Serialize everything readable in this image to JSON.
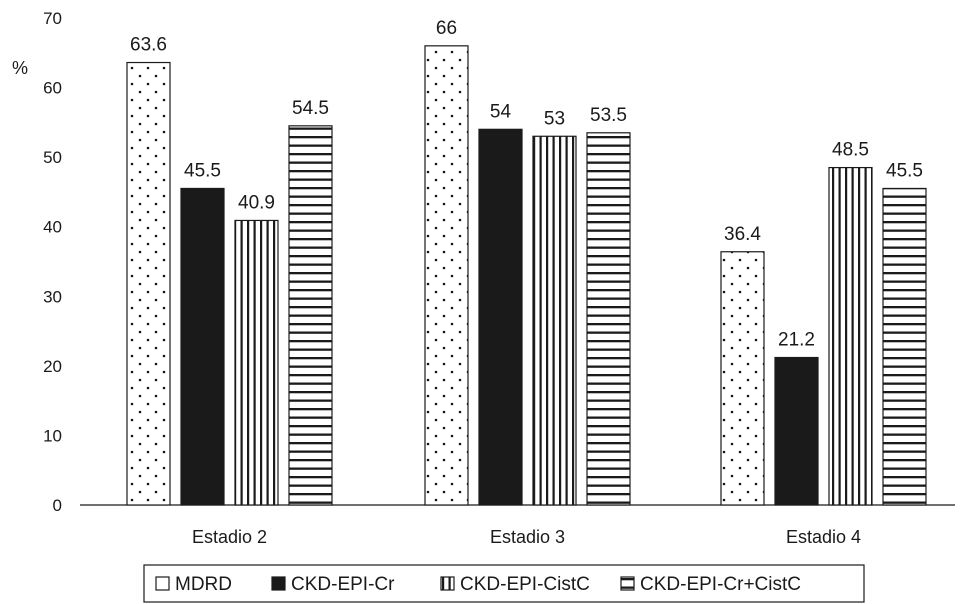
{
  "chart_data": {
    "type": "bar",
    "ylabel": "%",
    "ylim": [
      0,
      70
    ],
    "yticks": [
      "0",
      "10",
      "20",
      "30",
      "40",
      "50",
      "60",
      "70"
    ],
    "categories": [
      "Estadio 2",
      "Estadio 3",
      "Estadio 4"
    ],
    "series": [
      {
        "name": "MDRD",
        "pattern": "dots",
        "values": [
          63.6,
          66,
          36.4
        ],
        "labels": [
          "63.6",
          "66",
          "36.4"
        ]
      },
      {
        "name": "CKD-EPI-Cr",
        "pattern": "solid",
        "values": [
          45.5,
          54,
          21.2
        ],
        "labels": [
          "45.5",
          "54",
          "21.2"
        ]
      },
      {
        "name": "CKD-EPI-CistC",
        "pattern": "vertical-lines",
        "values": [
          40.9,
          53,
          48.5
        ],
        "labels": [
          "40.9",
          "53",
          "48.5"
        ]
      },
      {
        "name": "CKD-EPI-Cr+CistC",
        "pattern": "horizontal-lines",
        "values": [
          54.5,
          53.5,
          45.5
        ],
        "labels": [
          "54.5",
          "53.5",
          "45.5"
        ]
      }
    ],
    "legend_position": "bottom",
    "grid": false,
    "colors": {
      "ink": "#1a1a1a",
      "background": "#ffffff"
    }
  }
}
